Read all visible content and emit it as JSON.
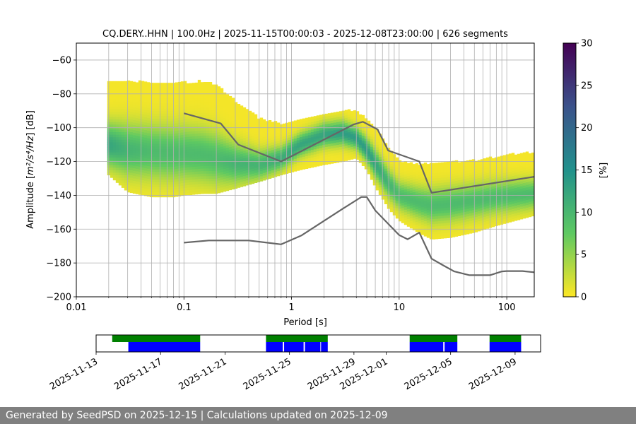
{
  "chart_data": [
    {
      "type": "heatmap",
      "title": "CQ.DERY..HHN | 100.0Hz | 2025-11-15T00:00:03 - 2025-12-08T23:00:00 | 626 segments",
      "xlabel": "Period [s]",
      "ylabel_main": "Amplitude [",
      "ylabel_math": "m²/s⁴/Hz",
      "ylabel_tail": "] [dB]",
      "xscale": "log",
      "xlim": [
        0.01,
        180
      ],
      "ylim": [
        -200,
        -50
      ],
      "x_ticks": [
        {
          "value": 0.01,
          "label": "0.01"
        },
        {
          "value": 0.1,
          "label": "0.1"
        },
        {
          "value": 1,
          "label": "1"
        },
        {
          "value": 10,
          "label": "10"
        },
        {
          "value": 100,
          "label": "100"
        }
      ],
      "y_ticks": [
        {
          "value": -60,
          "label": "−60"
        },
        {
          "value": -80,
          "label": "−80"
        },
        {
          "value": -100,
          "label": "−100"
        },
        {
          "value": -120,
          "label": "−120"
        },
        {
          "value": -140,
          "label": "−140"
        },
        {
          "value": -160,
          "label": "−160"
        },
        {
          "value": -180,
          "label": "−180"
        },
        {
          "value": -200,
          "label": "−200"
        }
      ],
      "grid": true,
      "density_bands": [
        {
          "period": 0.02,
          "low": -128,
          "high": -73,
          "mode": -110,
          "peak": 12
        },
        {
          "period": 0.03,
          "low": -138,
          "high": -73,
          "mode": -113,
          "peak": 10
        },
        {
          "period": 0.05,
          "low": -141,
          "high": -74,
          "mode": -114,
          "peak": 9
        },
        {
          "period": 0.08,
          "low": -141,
          "high": -74,
          "mode": -115,
          "peak": 9
        },
        {
          "period": 0.1,
          "low": -140,
          "high": -74,
          "mode": -115,
          "peak": 9
        },
        {
          "period": 0.15,
          "low": -139,
          "high": -73,
          "mode": -116,
          "peak": 9
        },
        {
          "period": 0.2,
          "low": -139,
          "high": -75,
          "mode": -118,
          "peak": 9
        },
        {
          "period": 0.3,
          "low": -136,
          "high": -85,
          "mode": -121,
          "peak": 10
        },
        {
          "period": 0.5,
          "low": -132,
          "high": -95,
          "mode": -122,
          "peak": 10
        },
        {
          "period": 0.8,
          "low": -128,
          "high": -98,
          "mode": -118,
          "peak": 11
        },
        {
          "period": 1.2,
          "low": -125,
          "high": -96,
          "mode": -110,
          "peak": 12
        },
        {
          "period": 2,
          "low": -122,
          "high": -92,
          "mode": -104,
          "peak": 12
        },
        {
          "period": 3,
          "low": -120,
          "high": -90,
          "mode": -103,
          "peak": 13
        },
        {
          "period": 4,
          "low": -118,
          "high": -91,
          "mode": -106,
          "peak": 13
        },
        {
          "period": 5,
          "low": -125,
          "high": -95,
          "mode": -113,
          "peak": 13
        },
        {
          "period": 6,
          "low": -135,
          "high": -100,
          "mode": -121,
          "peak": 12
        },
        {
          "period": 8,
          "low": -148,
          "high": -112,
          "mode": -133,
          "peak": 10
        },
        {
          "period": 10,
          "low": -155,
          "high": -120,
          "mode": -140,
          "peak": 9
        },
        {
          "period": 15,
          "low": -162,
          "high": -122,
          "mode": -144,
          "peak": 9
        },
        {
          "period": 20,
          "low": -166,
          "high": -122,
          "mode": -146,
          "peak": 9
        },
        {
          "period": 30,
          "low": -165,
          "high": -121,
          "mode": -145,
          "peak": 9
        },
        {
          "period": 50,
          "low": -162,
          "high": -120,
          "mode": -143,
          "peak": 9
        },
        {
          "period": 80,
          "low": -158,
          "high": -118,
          "mode": -141,
          "peak": 9
        },
        {
          "period": 120,
          "low": -155,
          "high": -116,
          "mode": -140,
          "peak": 9
        },
        {
          "period": 180,
          "low": -152,
          "high": -115,
          "mode": -139,
          "peak": 9
        }
      ],
      "reference_curves": [
        {
          "points": [
            [
              0.1,
              -91.5
            ],
            [
              0.22,
              -97.5
            ],
            [
              0.32,
              -110
            ],
            [
              0.8,
              -120
            ],
            [
              3.8,
              -98
            ],
            [
              4.6,
              -96.5
            ],
            [
              6.3,
              -101
            ],
            [
              7.9,
              -113.5
            ],
            [
              15.4,
              -120
            ],
            [
              20,
              -138.5
            ],
            [
              180,
              -129
            ]
          ]
        },
        {
          "points": [
            [
              0.1,
              -168
            ],
            [
              0.17,
              -166.7
            ],
            [
              0.4,
              -166.7
            ],
            [
              0.8,
              -169
            ],
            [
              1.24,
              -163.7
            ],
            [
              2.9,
              -148.5
            ],
            [
              4.45,
              -141
            ],
            [
              5.0,
              -141
            ],
            [
              6.0,
              -149
            ],
            [
              10,
              -163.5
            ],
            [
              12,
              -166
            ],
            [
              15.4,
              -162
            ],
            [
              20,
              -177.5
            ],
            [
              25,
              -181
            ],
            [
              32.5,
              -185
            ],
            [
              45,
              -187.2
            ],
            [
              70,
              -187.2
            ],
            [
              90,
              -185
            ],
            [
              100,
              -184.8
            ],
            [
              140,
              -184.8
            ],
            [
              180,
              -185.5
            ]
          ]
        }
      ]
    },
    {
      "type": "colorbar",
      "label": "[%]",
      "range": [
        0,
        30
      ],
      "ticks": [
        {
          "value": 0,
          "label": "0"
        },
        {
          "value": 5,
          "label": "5"
        },
        {
          "value": 10,
          "label": "10"
        },
        {
          "value": 15,
          "label": "15"
        },
        {
          "value": 20,
          "label": "20"
        },
        {
          "value": 25,
          "label": "25"
        },
        {
          "value": 30,
          "label": "30"
        }
      ],
      "colormap": [
        "#fde725",
        "#5ec962",
        "#21918c",
        "#3b528b",
        "#440154"
      ]
    },
    {
      "type": "timeline",
      "xlim": [
        "2025-11-13",
        "2025-12-10T14:00"
      ],
      "x_ticks": [
        {
          "date": "2025-11-13",
          "label": "2025-11-13"
        },
        {
          "date": "2025-11-17",
          "label": "2025-11-17"
        },
        {
          "date": "2025-11-21",
          "label": "2025-11-21"
        },
        {
          "date": "2025-11-25",
          "label": "2025-11-25"
        },
        {
          "date": "2025-11-29",
          "label": "2025-11-29"
        },
        {
          "date": "2025-12-01",
          "label": "2025-12-01"
        },
        {
          "date": "2025-12-05",
          "label": "2025-12-05"
        },
        {
          "date": "2025-12-09",
          "label": "2025-12-09"
        }
      ],
      "data_availability": [
        {
          "start": "2025-11-14",
          "end": "2025-11-19T11:00"
        },
        {
          "start": "2025-11-23T13:00",
          "end": "2025-11-27T09:00"
        },
        {
          "start": "2025-12-02T11:00",
          "end": "2025-12-05T10:00"
        },
        {
          "start": "2025-12-07T10:00",
          "end": "2025-12-09T09:00"
        }
      ],
      "psd_coverage": [
        {
          "start": "2025-11-15",
          "end": "2025-11-19T11:00"
        },
        {
          "start": "2025-11-23T13:00",
          "end": "2025-11-24T14:00"
        },
        {
          "start": "2025-11-24T16:00",
          "end": "2025-11-25T21:00"
        },
        {
          "start": "2025-11-25T23:00",
          "end": "2025-11-26T22:00"
        },
        {
          "start": "2025-11-26T23:00",
          "end": "2025-11-27T09:00"
        },
        {
          "start": "2025-12-02T11:00",
          "end": "2025-12-04T13:00"
        },
        {
          "start": "2025-12-04T15:00",
          "end": "2025-12-05T10:00"
        },
        {
          "start": "2025-12-07T10:00",
          "end": "2025-12-09T09:00"
        }
      ],
      "colors": {
        "availability": "#008000",
        "coverage": "#0000ff"
      }
    }
  ],
  "footer": {
    "text": "Generated by SeedPSD on 2025-12-15 | Calculations updated on 2025-12-09"
  }
}
